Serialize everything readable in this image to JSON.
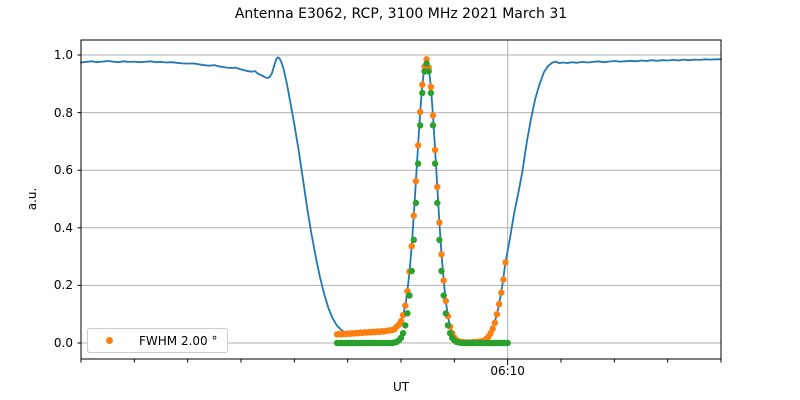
{
  "title": "Antenna E3062, RCP, 3100 MHz 2021 March 31",
  "axes": {
    "xlabel": "UT",
    "ylabel": "a.u."
  },
  "legend": {
    "label": "FWHM 2.00 °",
    "marker_color": "#ff7f0e",
    "position": "lower left"
  },
  "colors": {
    "scan_line": "#1f77b4",
    "scan_points": "#ff7f0e",
    "fit_points": "#2ca02c",
    "grid": "#b0b0b0",
    "spine": "#000000",
    "background": "#ffffff"
  },
  "chart_data": {
    "type": "line",
    "title": "Antenna E3062, RCP, 3100 MHz 2021 March 31",
    "xlabel": "UT",
    "ylabel": "a.u.",
    "x_unit": "minutes, t=40 corresponds to the labeled tick 06:10 UT",
    "xlim": [
      0,
      60
    ],
    "ylim": [
      -0.0556,
      1.0521
    ],
    "grid": "horizontal lines at every y tick; one vertical line at labeled x tick",
    "legend_position": "lower left",
    "y_ticks": [
      0.0,
      0.2,
      0.4,
      0.6,
      0.8,
      1.0
    ],
    "y_tick_labels": [
      "0.0",
      "0.2",
      "0.4",
      "0.6",
      "0.8",
      "1.0"
    ],
    "x_minor_ticks": [
      0,
      5,
      10,
      15,
      20,
      25,
      30,
      35,
      45,
      50,
      55,
      60
    ],
    "x_major_ticks": [
      {
        "t": 40,
        "label": "06:10"
      }
    ],
    "series": [
      {
        "name": "drift-scan-signal",
        "type": "line",
        "color": "#1f77b4",
        "points": [
          [
            0,
            0.974
          ],
          [
            0.5,
            0.976
          ],
          [
            1,
            0.978
          ],
          [
            1.5,
            0.975
          ],
          [
            2,
            0.977
          ],
          [
            2.5,
            0.979
          ],
          [
            3,
            0.977
          ],
          [
            3.5,
            0.975
          ],
          [
            4,
            0.978
          ],
          [
            4.5,
            0.976
          ],
          [
            5,
            0.977
          ],
          [
            5.5,
            0.975
          ],
          [
            6,
            0.976
          ],
          [
            6.5,
            0.978
          ],
          [
            7,
            0.975
          ],
          [
            7.5,
            0.976
          ],
          [
            8,
            0.974
          ],
          [
            8.5,
            0.975
          ],
          [
            9,
            0.973
          ],
          [
            9.5,
            0.971
          ],
          [
            10,
            0.97
          ],
          [
            10.5,
            0.971
          ],
          [
            11,
            0.968
          ],
          [
            11.5,
            0.965
          ],
          [
            12,
            0.963
          ],
          [
            12.5,
            0.965
          ],
          [
            13,
            0.96
          ],
          [
            13.5,
            0.957
          ],
          [
            14,
            0.955
          ],
          [
            14.5,
            0.956
          ],
          [
            15,
            0.95
          ],
          [
            15.5,
            0.945
          ],
          [
            16,
            0.942
          ],
          [
            16.3,
            0.944
          ],
          [
            16.6,
            0.935
          ],
          [
            17,
            0.928
          ],
          [
            17.3,
            0.922
          ],
          [
            17.5,
            0.92
          ],
          [
            17.7,
            0.924
          ],
          [
            17.9,
            0.936
          ],
          [
            18.1,
            0.962
          ],
          [
            18.3,
            0.985
          ],
          [
            18.45,
            0.992
          ],
          [
            18.6,
            0.989
          ],
          [
            18.8,
            0.974
          ],
          [
            19,
            0.95
          ],
          [
            19.3,
            0.9
          ],
          [
            19.6,
            0.84
          ],
          [
            20,
            0.76
          ],
          [
            20.4,
            0.67
          ],
          [
            20.8,
            0.57
          ],
          [
            21.2,
            0.47
          ],
          [
            21.6,
            0.38
          ],
          [
            22,
            0.3
          ],
          [
            22.4,
            0.23
          ],
          [
            22.8,
            0.17
          ],
          [
            23.2,
            0.12
          ],
          [
            23.6,
            0.085
          ],
          [
            24,
            0.06
          ],
          [
            24.4,
            0.045
          ],
          [
            24.8,
            0.036
          ],
          [
            25.2,
            0.032
          ],
          [
            25.8,
            0.034
          ],
          [
            26.4,
            0.035
          ],
          [
            27,
            0.038
          ],
          [
            27.6,
            0.038
          ],
          [
            28.2,
            0.041
          ],
          [
            28.8,
            0.043
          ],
          [
            29.2,
            0.046
          ],
          [
            29.6,
            0.057
          ],
          [
            29.8,
            0.064
          ],
          [
            30,
            0.076
          ],
          [
            30.2,
            0.097
          ],
          [
            30.4,
            0.13
          ],
          [
            30.6,
            0.18
          ],
          [
            30.8,
            0.248
          ],
          [
            31,
            0.336
          ],
          [
            31.2,
            0.442
          ],
          [
            31.4,
            0.562
          ],
          [
            31.6,
            0.686
          ],
          [
            31.8,
            0.802
          ],
          [
            32,
            0.897
          ],
          [
            32.2,
            0.96
          ],
          [
            32.4,
            0.985
          ],
          [
            32.6,
            0.956
          ],
          [
            32.8,
            0.889
          ],
          [
            33,
            0.79
          ],
          [
            33.2,
            0.67
          ],
          [
            33.4,
            0.542
          ],
          [
            33.6,
            0.418
          ],
          [
            33.8,
            0.308
          ],
          [
            34,
            0.217
          ],
          [
            34.2,
            0.146
          ],
          [
            34.4,
            0.093
          ],
          [
            34.6,
            0.057
          ],
          [
            34.8,
            0.034
          ],
          [
            35,
            0.019
          ],
          [
            35.2,
            0.01
          ],
          [
            35.4,
            0.006
          ],
          [
            35.6,
            0.004
          ],
          [
            35.8,
            0.003
          ],
          [
            36.2,
            0.002
          ],
          [
            36.8,
            0.003
          ],
          [
            37.4,
            0.005
          ],
          [
            37.8,
            0.009
          ],
          [
            38.2,
            0.022
          ],
          [
            38.6,
            0.05
          ],
          [
            39,
            0.1
          ],
          [
            39.4,
            0.175
          ],
          [
            39.8,
            0.28
          ],
          [
            40.2,
            0.36
          ],
          [
            40.6,
            0.45
          ],
          [
            41,
            0.52
          ],
          [
            41.4,
            0.6
          ],
          [
            41.8,
            0.7
          ],
          [
            42.2,
            0.78
          ],
          [
            42.6,
            0.85
          ],
          [
            43,
            0.9
          ],
          [
            43.4,
            0.94
          ],
          [
            43.8,
            0.962
          ],
          [
            44.2,
            0.974
          ],
          [
            44.5,
            0.977
          ],
          [
            44.8,
            0.972
          ],
          [
            45.2,
            0.974
          ],
          [
            45.6,
            0.972
          ],
          [
            46,
            0.975
          ],
          [
            46.5,
            0.973
          ],
          [
            47,
            0.976
          ],
          [
            47.5,
            0.974
          ],
          [
            48,
            0.976
          ],
          [
            48.5,
            0.978
          ],
          [
            49,
            0.975
          ],
          [
            49.5,
            0.977
          ],
          [
            50,
            0.979
          ],
          [
            50.5,
            0.977
          ],
          [
            51,
            0.978
          ],
          [
            51.5,
            0.98
          ],
          [
            52,
            0.978
          ],
          [
            52.5,
            0.981
          ],
          [
            53,
            0.979
          ],
          [
            53.5,
            0.982
          ],
          [
            54,
            0.98
          ],
          [
            54.5,
            0.982
          ],
          [
            55,
            0.981
          ],
          [
            55.5,
            0.983
          ],
          [
            56,
            0.981
          ],
          [
            56.5,
            0.984
          ],
          [
            57,
            0.982
          ],
          [
            57.5,
            0.984
          ],
          [
            58,
            0.983
          ],
          [
            58.5,
            0.985
          ],
          [
            59,
            0.984
          ],
          [
            59.5,
            0.985
          ],
          [
            60,
            0.985
          ]
        ]
      },
      {
        "name": "scan-data-points",
        "type": "scatter",
        "color": "#ff7f0e",
        "marker_radius": 3.2,
        "t_start": 24.0,
        "t_step": 0.2,
        "values": [
          0.03,
          0.031,
          0.03,
          0.032,
          0.031,
          0.033,
          0.032,
          0.034,
          0.033,
          0.035,
          0.034,
          0.036,
          0.035,
          0.037,
          0.036,
          0.038,
          0.037,
          0.039,
          0.038,
          0.04,
          0.039,
          0.041,
          0.04,
          0.042,
          0.043,
          0.044,
          0.046,
          0.048,
          0.057,
          0.064,
          0.076,
          0.097,
          0.13,
          0.18,
          0.248,
          0.336,
          0.442,
          0.562,
          0.686,
          0.802,
          0.897,
          0.96,
          0.985,
          0.956,
          0.889,
          0.79,
          0.67,
          0.542,
          0.418,
          0.308,
          0.217,
          0.146,
          0.093,
          0.057,
          0.034,
          0.019,
          0.01,
          0.006,
          0.004,
          0.003,
          0.002,
          0.002,
          0.002,
          0.002,
          0.003,
          0.003,
          0.004,
          0.005,
          0.006,
          0.009,
          0.014,
          0.022,
          0.034,
          0.05,
          0.07,
          0.1,
          0.135,
          0.175,
          0.22,
          0.28
        ]
      },
      {
        "name": "gaussian-fit-points",
        "type": "scatter",
        "color": "#2ca02c",
        "marker_radius": 3.2,
        "t_start": 24.0,
        "t_step": 0.2,
        "values": [
          0,
          0,
          0,
          0,
          0,
          0,
          0,
          0,
          0,
          0,
          0,
          0,
          0,
          0,
          0,
          0,
          0,
          0,
          0,
          0,
          0,
          0,
          0,
          0,
          0,
          0,
          0,
          0.002,
          0.004,
          0.009,
          0.018,
          0.034,
          0.061,
          0.103,
          0.165,
          0.25,
          0.358,
          0.486,
          0.623,
          0.756,
          0.868,
          0.943,
          0.97,
          0.943,
          0.868,
          0.756,
          0.623,
          0.486,
          0.358,
          0.25,
          0.165,
          0.103,
          0.061,
          0.034,
          0.018,
          0.009,
          0.004,
          0.002,
          0.001,
          0,
          0,
          0,
          0,
          0,
          0,
          0,
          0,
          0,
          0,
          0,
          0,
          0,
          0,
          0,
          0,
          0,
          0,
          0,
          0,
          0,
          0
        ]
      }
    ]
  }
}
